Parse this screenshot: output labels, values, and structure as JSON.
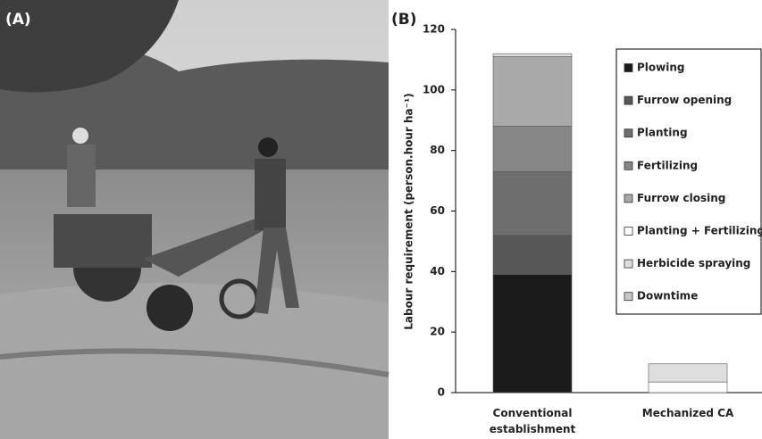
{
  "panel_labels": {
    "a": "(A)",
    "b": "(B)"
  },
  "chart_data": {
    "type": "stacked-bar",
    "ylabel": "Labour requirement (person.hour ha⁻¹)",
    "categories": [
      "Conventional establishment",
      "Mechanized CA"
    ],
    "series": [
      {
        "name": "Plowing",
        "color": "#1b1b1b",
        "values": [
          39,
          0
        ]
      },
      {
        "name": "Furrow opening",
        "color": "#575757",
        "values": [
          13,
          0
        ]
      },
      {
        "name": "Planting",
        "color": "#6e6e6e",
        "values": [
          21,
          0
        ]
      },
      {
        "name": "Fertilizing",
        "color": "#878787",
        "values": [
          15,
          0
        ]
      },
      {
        "name": "Furrow closing",
        "color": "#a9a9a9",
        "values": [
          23,
          0
        ]
      },
      {
        "name": "Planting + Fertilizing",
        "color": "#ffffff",
        "values": [
          0,
          3.5
        ]
      },
      {
        "name": "Herbicide spraying",
        "color": "#dedede",
        "values": [
          1,
          6
        ]
      },
      {
        "name": "Downtime",
        "color": "#c6c6c6",
        "values": [
          0,
          0
        ]
      }
    ],
    "ylim": [
      0,
      120
    ],
    "yticks": [
      0,
      20,
      40,
      60,
      80,
      100,
      120
    ]
  }
}
